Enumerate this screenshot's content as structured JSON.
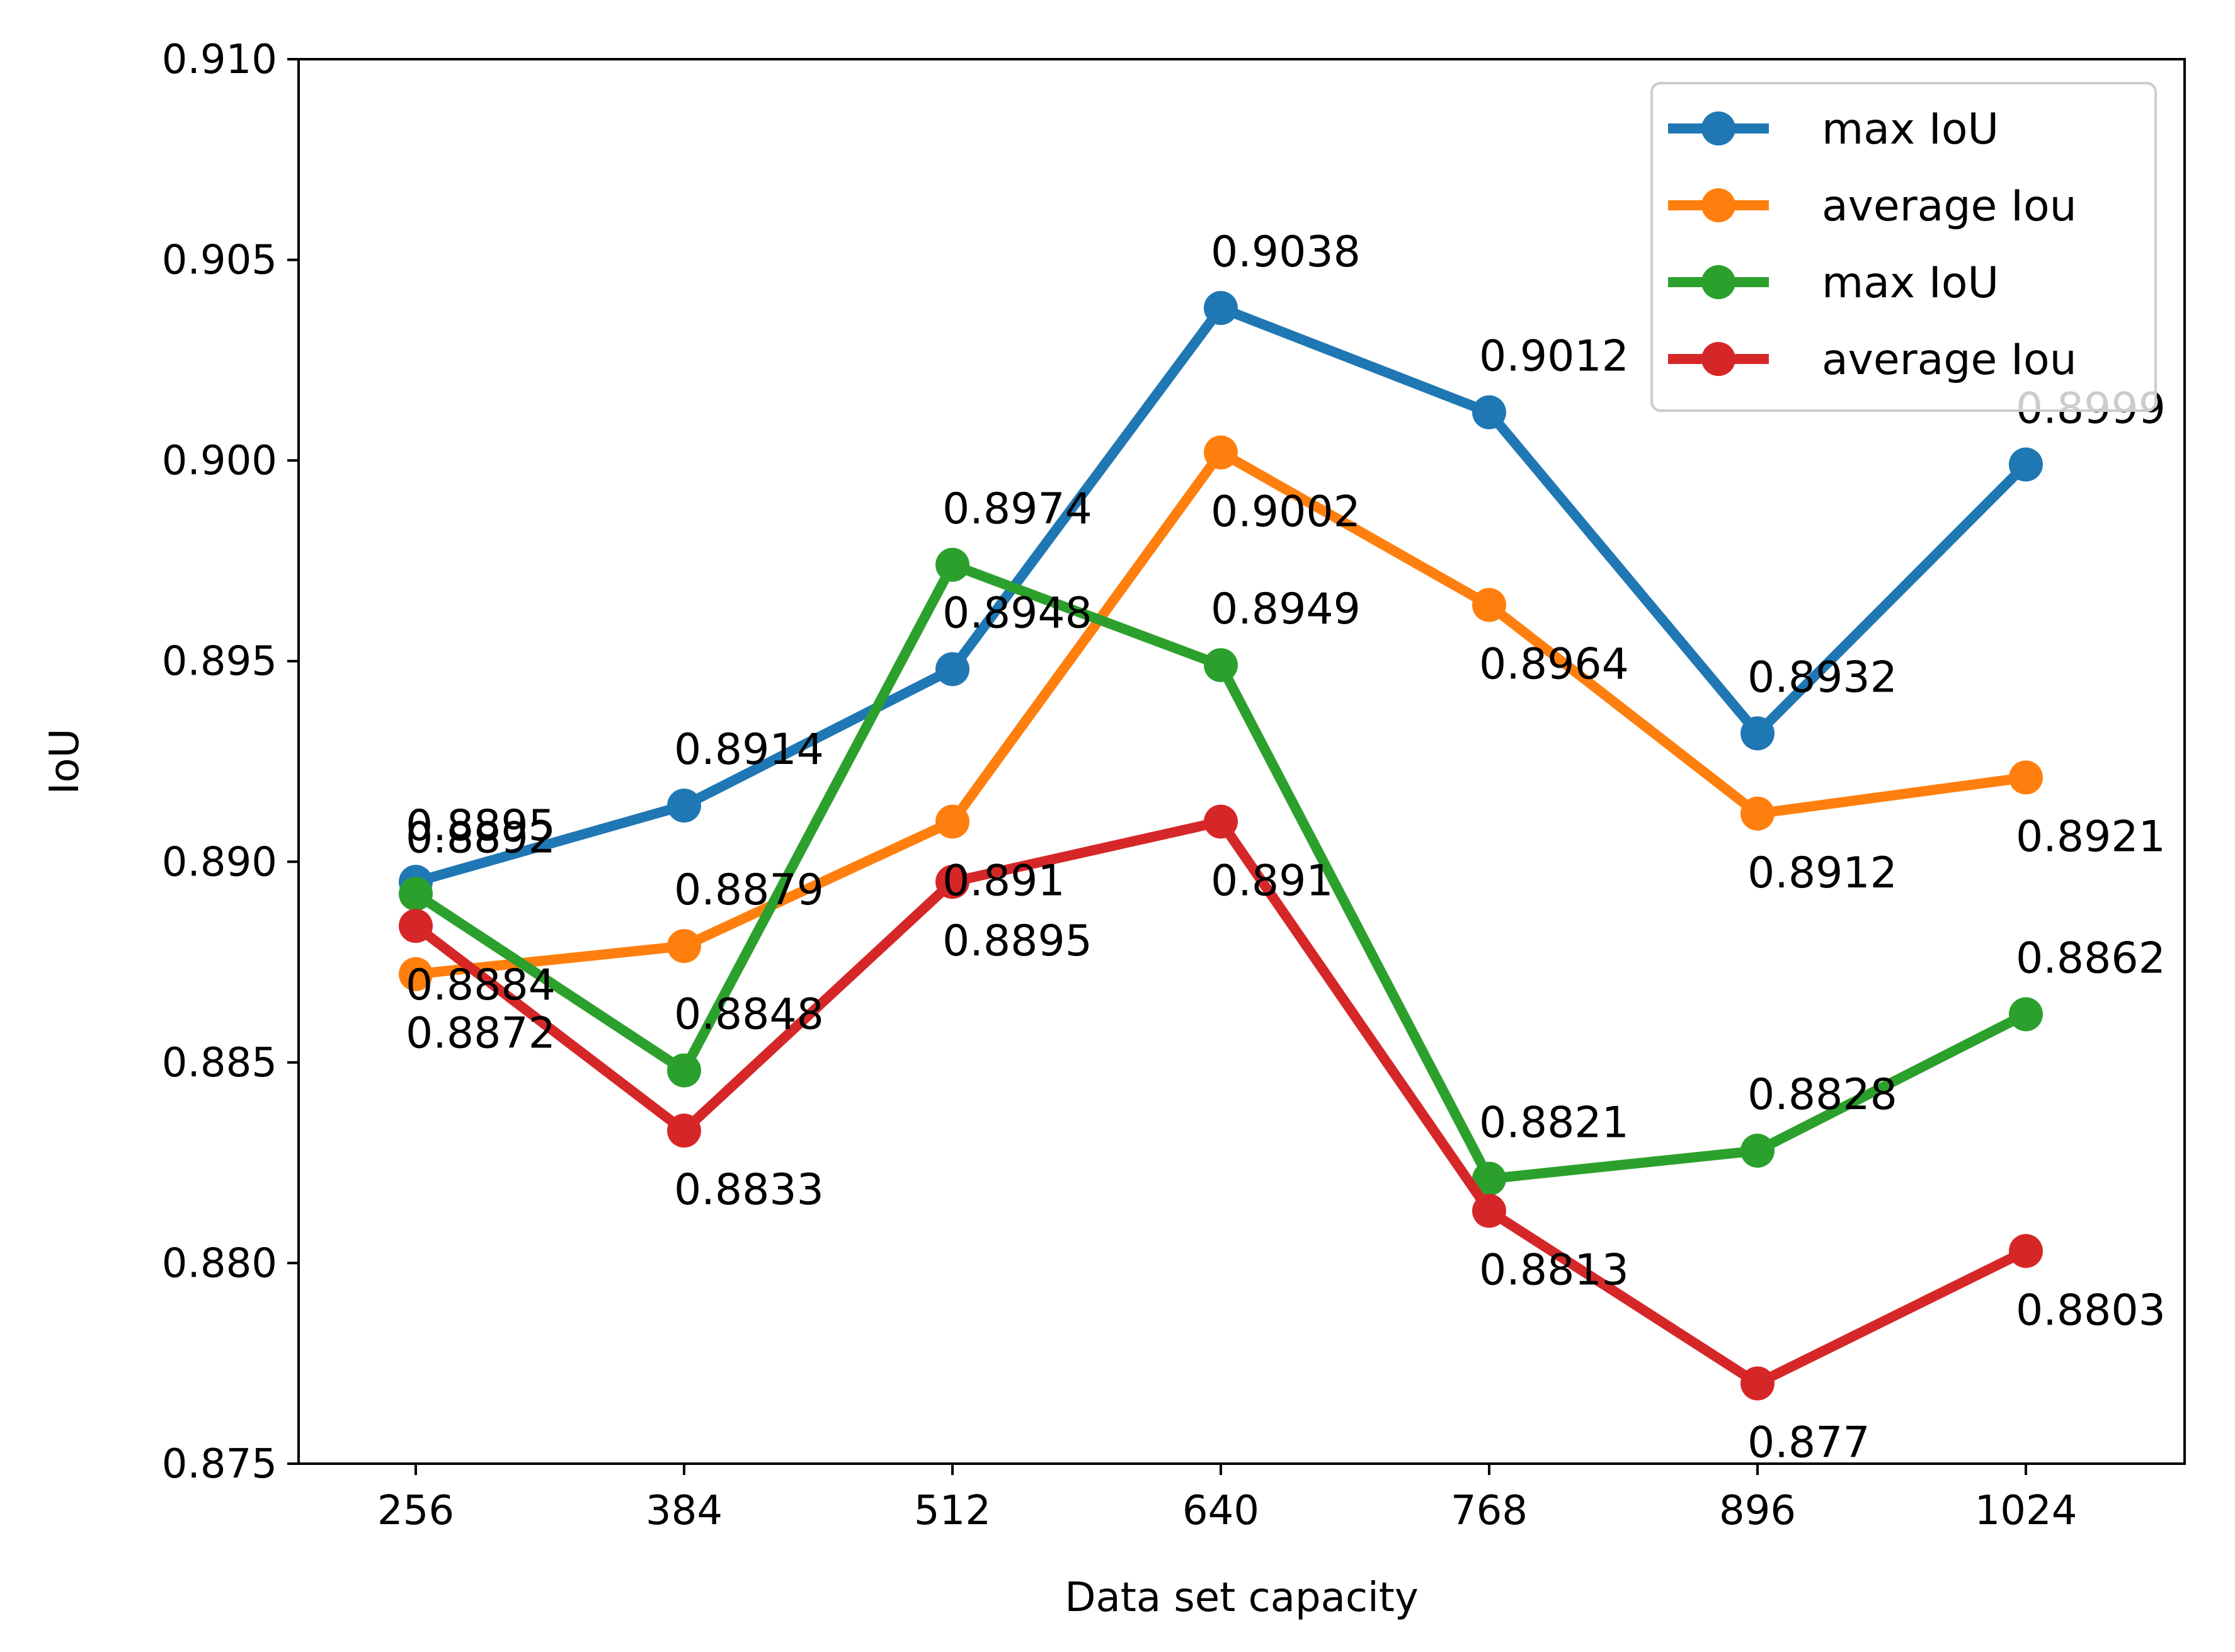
{
  "chart_data": {
    "type": "line",
    "xlabel": "Data set capacity",
    "ylabel": "IoU",
    "categories": [
      "256",
      "384",
      "512",
      "640",
      "768",
      "896",
      "1024"
    ],
    "ylim": [
      0.875,
      0.91
    ],
    "yticks": [
      "0.875",
      "0.880",
      "0.885",
      "0.890",
      "0.895",
      "0.900",
      "0.905",
      "0.910"
    ],
    "legend_position": "top-right",
    "grid": false,
    "series": [
      {
        "name": "max IoU",
        "color": "#1f77b4",
        "values": [
          0.8895,
          0.8914,
          0.8948,
          0.9038,
          0.9012,
          0.8932,
          0.8999
        ],
        "labels": [
          "0.8895",
          "0.8914",
          "0.8948",
          "0.9038",
          "0.9012",
          "0.8932",
          "0.8999"
        ],
        "label_side": [
          "above",
          "above",
          "above",
          "above",
          "above",
          "above",
          "above"
        ]
      },
      {
        "name": "average Iou",
        "color": "#ff7f0e",
        "values": [
          0.8872,
          0.8879,
          0.891,
          0.9002,
          0.8964,
          0.8912,
          0.8921
        ],
        "labels": [
          "0.8872",
          "0.8879",
          "0.891",
          "0.9002",
          "0.8964",
          "0.8912",
          "0.8921"
        ],
        "label_side": [
          "below",
          "above",
          "below",
          "below",
          "below",
          "below",
          "below"
        ]
      },
      {
        "name": "max IoU",
        "color": "#2ca02c",
        "values": [
          0.8892,
          0.8848,
          0.8974,
          0.8949,
          0.8821,
          0.8828,
          0.8862
        ],
        "labels": [
          "0.8892",
          "0.8848",
          "0.8974",
          "0.8949",
          "0.8821",
          "0.8828",
          "0.8862"
        ],
        "label_side": [
          "above",
          "above",
          "above",
          "above",
          "above",
          "above",
          "above"
        ]
      },
      {
        "name": "average Iou",
        "color": "#d62728",
        "values": [
          0.8884,
          0.8833,
          0.8895,
          0.891,
          0.8813,
          0.877,
          0.8803
        ],
        "labels": [
          "0.8884",
          "0.8833",
          "0.8895",
          "0.891",
          "0.8813",
          "0.877",
          "0.8803"
        ],
        "label_side": [
          "below",
          "below",
          "below",
          "below",
          "below",
          "below",
          "below"
        ]
      }
    ]
  }
}
